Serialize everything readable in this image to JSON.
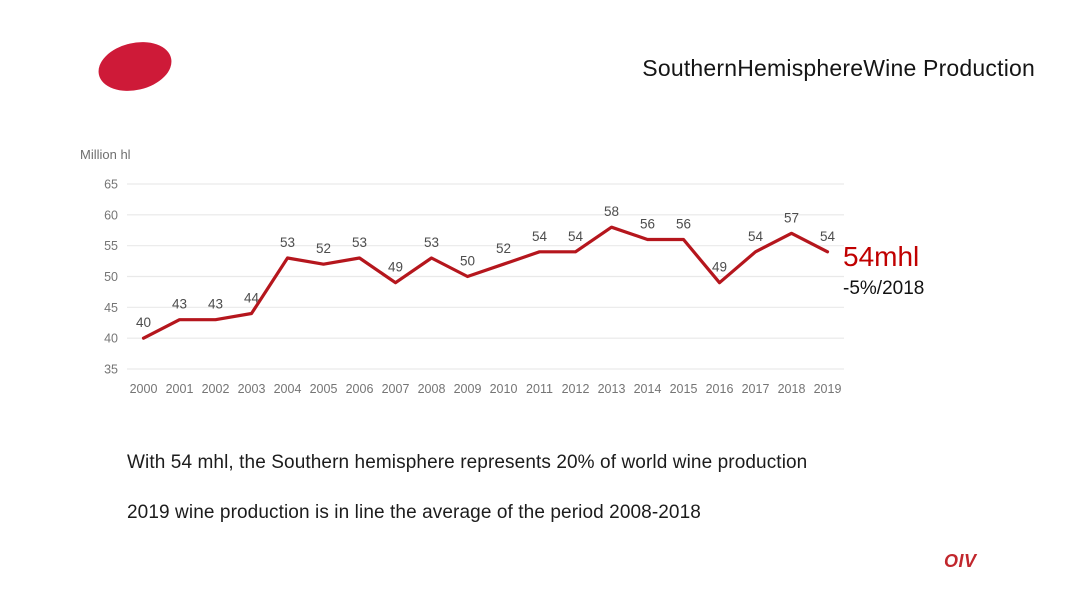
{
  "header": {
    "title": "SouthernHemisphereWine Production"
  },
  "logo": {
    "name": "red-ellipse-logo",
    "color": "#ce1a38"
  },
  "chart_data": {
    "type": "line",
    "title": "SouthernHemisphereWine Production",
    "ylabel": "Million hl",
    "xlabel": "",
    "categories": [
      "2000",
      "2001",
      "2002",
      "2003",
      "2004",
      "2005",
      "2006",
      "2007",
      "2008",
      "2009",
      "2010",
      "2011",
      "2012",
      "2013",
      "2014",
      "2015",
      "2016",
      "2017",
      "2018",
      "2019"
    ],
    "values": [
      40,
      43,
      43,
      44,
      53,
      52,
      53,
      49,
      53,
      50,
      52,
      54,
      54,
      58,
      56,
      56,
      49,
      54,
      57,
      54
    ],
    "ylim": [
      35,
      65
    ],
    "ytick_step": 5,
    "grid": true,
    "legend": "none",
    "point_labels_shown": true,
    "colors": {
      "line": "#b5161d",
      "gridline": "#e9e9e9",
      "tick_label": "#757575",
      "point_label": "#4d4d4d"
    }
  },
  "annotation": {
    "value": "54mhl",
    "value_color": "#c00000",
    "change": "-5%/2018"
  },
  "notes": [
    "With 54 mhl, the Southern hemisphere represents 20% of world wine production",
    "2019 wine production is in line the average of the period 2008-2018"
  ],
  "footer": {
    "brand": "OIV",
    "brand_color": "#c1272d"
  }
}
